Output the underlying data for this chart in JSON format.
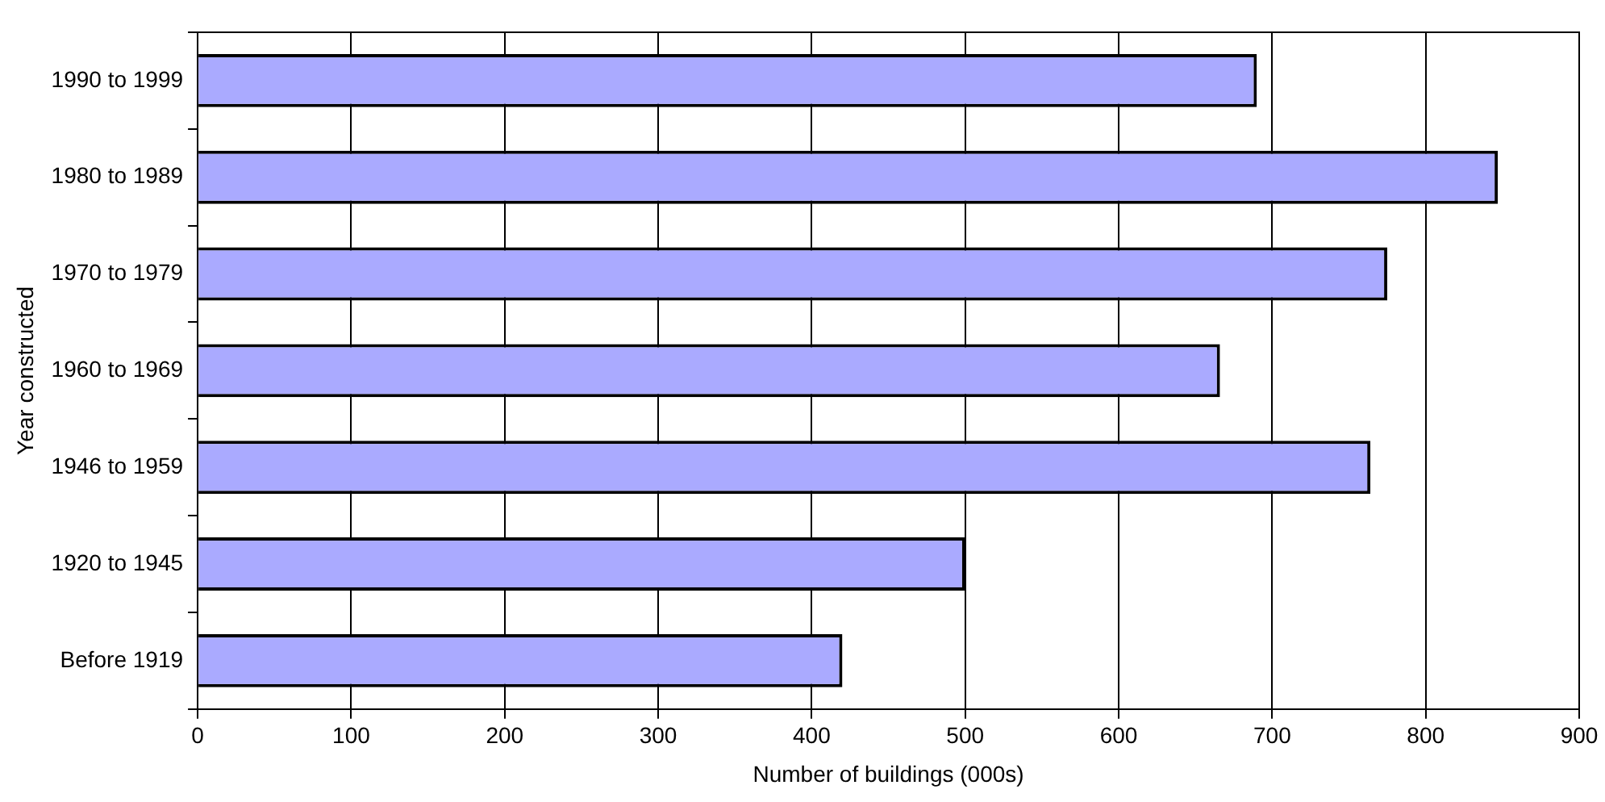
{
  "chart_data": {
    "type": "bar",
    "orientation": "horizontal",
    "xlabel": "Number of buildings (000s)",
    "ylabel": "Year constructed",
    "categories": [
      "1990 to 1999",
      "1980 to 1989",
      "1970 to 1979",
      "1960 to 1969",
      "1946 to 1959",
      "1920 to 1945",
      "Before 1919"
    ],
    "values": [
      690,
      847,
      775,
      666,
      764,
      500,
      420
    ],
    "color": "#aaaaff",
    "xlim": [
      0,
      900
    ],
    "xticks": [
      0,
      100,
      200,
      300,
      400,
      500,
      600,
      700,
      800,
      900
    ],
    "grid": "x",
    "legend": false
  }
}
